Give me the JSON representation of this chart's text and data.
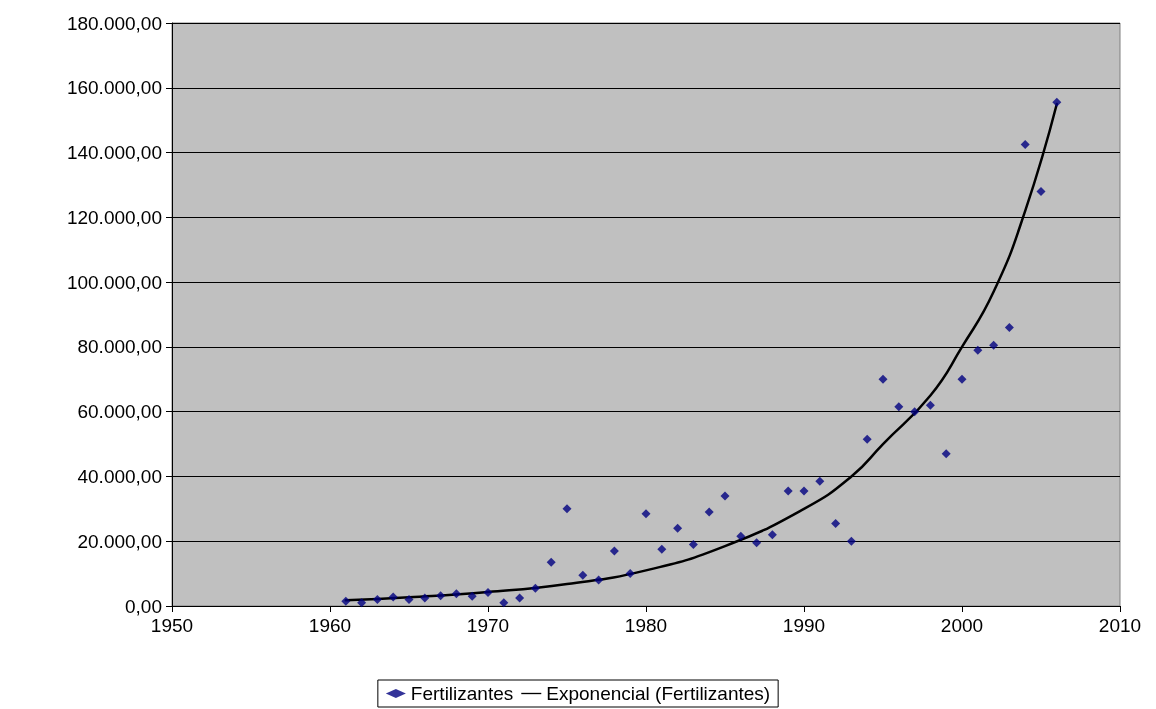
{
  "chart_data": {
    "type": "scatter",
    "xlim": [
      1950,
      2010
    ],
    "xticks": [
      1950,
      1960,
      1970,
      1980,
      1990,
      2000,
      2010
    ],
    "ylim": [
      0,
      180000
    ],
    "yticks": [
      {
        "value": 0,
        "label": "0,00"
      },
      {
        "value": 20000,
        "label": "20.000,00"
      },
      {
        "value": 40000,
        "label": "40.000,00"
      },
      {
        "value": 60000,
        "label": "60.000,00"
      },
      {
        "value": 80000,
        "label": "80.000,00"
      },
      {
        "value": 100000,
        "label": "100.000,00"
      },
      {
        "value": 120000,
        "label": "120.000,00"
      },
      {
        "value": 140000,
        "label": "140.000,00"
      },
      {
        "value": 160000,
        "label": "160.000,00"
      },
      {
        "value": 180000,
        "label": "180.000,00"
      }
    ],
    "grid": "y",
    "legend": "bottom",
    "series": [
      {
        "name": "Fertilizantes",
        "marker": "diamond",
        "color": "#000080",
        "x": [
          1961,
          1962,
          1963,
          1964,
          1965,
          1966,
          1967,
          1968,
          1969,
          1970,
          1971,
          1972,
          1973,
          1974,
          1975,
          1976,
          1977,
          1978,
          1979,
          1980,
          1981,
          1982,
          1983,
          1984,
          1985,
          1986,
          1987,
          1988,
          1989,
          1990,
          1991,
          1992,
          1993,
          1994,
          1995,
          1996,
          1997,
          1998,
          1999,
          2000,
          2001,
          2002,
          2003,
          2004,
          2005,
          2006
        ],
        "values": [
          1500,
          1000,
          2000,
          2800,
          2000,
          2500,
          3200,
          3800,
          3000,
          4200,
          1000,
          2500,
          5500,
          13500,
          30000,
          9500,
          8000,
          17000,
          10000,
          28500,
          17500,
          24000,
          19000,
          29000,
          34000,
          21500,
          19500,
          22000,
          35500,
          35500,
          38500,
          25500,
          20000,
          51500,
          70000,
          61500,
          60000,
          62000,
          47000,
          70000,
          79000,
          80500,
          86000,
          142500,
          128000,
          155500
        ]
      },
      {
        "name": "Exponencial (Fertilizantes)",
        "type": "line",
        "marker": "none",
        "line_style": "solid",
        "color": "#000000",
        "x": [
          1961,
          1965,
          1970,
          1975,
          1980,
          1985,
          1990,
          1993,
          1995,
          1998,
          2000,
          2002,
          2004,
          2006
        ],
        "values": [
          1800,
          2700,
          4300,
          6800,
          11000,
          18500,
          30000,
          40000,
          50000,
          65000,
          80000,
          97000,
          122000,
          155000
        ]
      }
    ]
  }
}
